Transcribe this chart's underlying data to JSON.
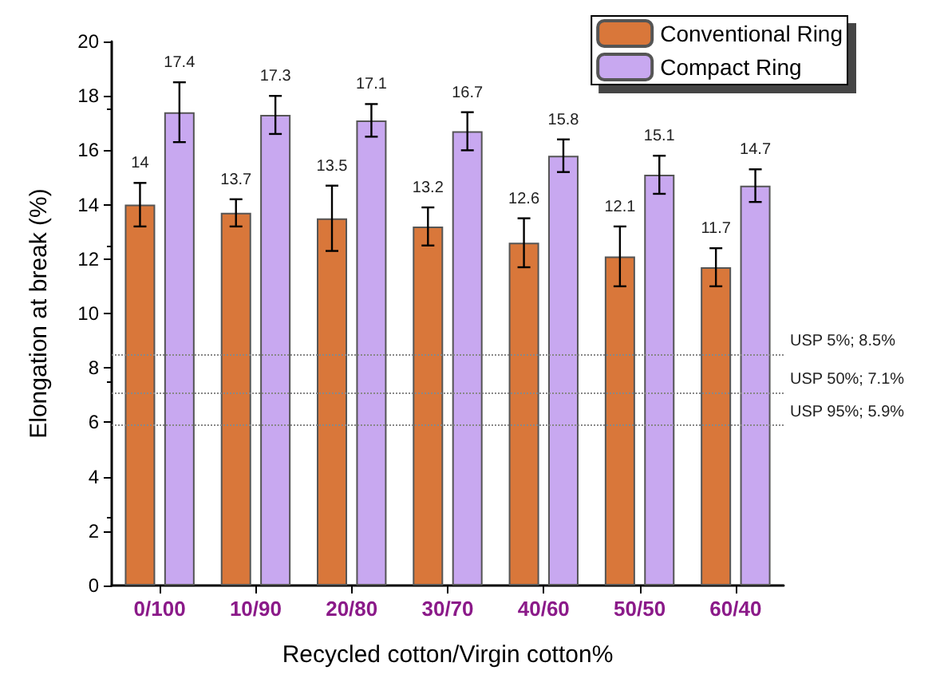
{
  "chart_data": {
    "type": "bar",
    "xlabel": "Recycled cotton/Virgin cotton%",
    "ylabel": "Elongation at break (%)",
    "categories": [
      "0/100",
      "10/90",
      "20/80",
      "30/70",
      "40/60",
      "50/50",
      "60/40"
    ],
    "series": [
      {
        "name": "Conventional Ring",
        "color": "#d9773a",
        "values": [
          14,
          13.7,
          13.5,
          13.2,
          12.6,
          12.1,
          11.7
        ],
        "errors": [
          0.8,
          0.5,
          1.2,
          0.7,
          0.9,
          1.1,
          0.7
        ]
      },
      {
        "name": "Compact Ring",
        "color": "#c8a8f0",
        "values": [
          17.4,
          17.3,
          17.1,
          16.7,
          15.8,
          15.1,
          14.7
        ],
        "errors": [
          1.1,
          0.7,
          0.6,
          0.7,
          0.6,
          0.7,
          0.6
        ]
      }
    ],
    "ylim": [
      0,
      20
    ],
    "yticks": [
      0,
      2,
      4,
      6,
      8,
      10,
      12,
      14,
      16,
      18,
      20
    ],
    "ref_lines": [
      {
        "axis": "y",
        "value": 8.5,
        "label": "USP 5%; 8.5%"
      },
      {
        "axis": "y",
        "value": 7.1,
        "label": "USP 50%; 7.1%"
      },
      {
        "axis": "y",
        "value": 5.9,
        "label": "USP 95%; 5.9%"
      }
    ],
    "data_labels": true,
    "grid": false,
    "legend": "top right"
  }
}
